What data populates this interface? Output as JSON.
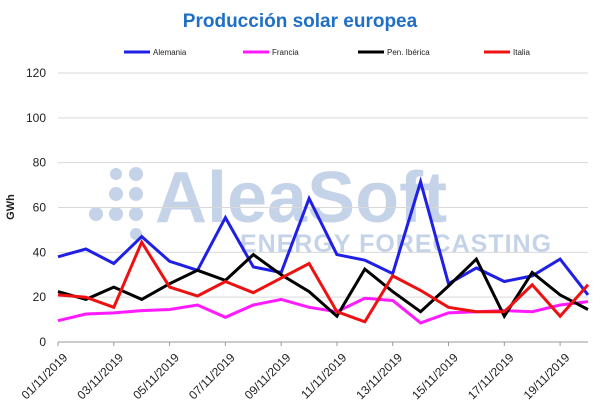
{
  "watermark": {
    "main": "AleaSoft",
    "sub": "ENERGY FORECASTING"
  },
  "chart_data": {
    "type": "line",
    "title": "Producción solar europea",
    "title_color": "#1f6fc5",
    "ylabel": "GWh",
    "xlabel": "",
    "ylim": [
      0,
      120
    ],
    "yticks": [
      0,
      20,
      40,
      60,
      80,
      100,
      120
    ],
    "grid": "horizontal",
    "legend_position": "top",
    "x": [
      "01/11/2019",
      "02/11/2019",
      "03/11/2019",
      "04/11/2019",
      "05/11/2019",
      "06/11/2019",
      "07/11/2019",
      "08/11/2019",
      "09/11/2019",
      "10/11/2019",
      "11/11/2019",
      "12/11/2019",
      "13/11/2019",
      "14/11/2019",
      "15/11/2019",
      "16/11/2019",
      "17/11/2019",
      "18/11/2019",
      "19/11/2019",
      "20/11/2019"
    ],
    "x_tick_labels": [
      "01/11/2019",
      "03/11/2019",
      "05/11/2019",
      "07/11/2019",
      "09/11/2019",
      "11/11/2019",
      "13/11/2019",
      "15/11/2019",
      "17/11/2019",
      "19/11/2019"
    ],
    "series": [
      {
        "name": "Alemania",
        "color": "#1f1fe6",
        "values": [
          38,
          41.5,
          35,
          47,
          36,
          32,
          55.5,
          33.5,
          31,
          64,
          39,
          36.5,
          30.5,
          71.5,
          26,
          33,
          27,
          29.5,
          37,
          21
        ]
      },
      {
        "name": "Francia",
        "color": "#ff1aff",
        "values": [
          9.5,
          12.5,
          13,
          14,
          14.5,
          16.5,
          11,
          16.5,
          19,
          15.5,
          13.5,
          19.5,
          18.5,
          8.5,
          13,
          13.5,
          14,
          13.5,
          16.5,
          18
        ]
      },
      {
        "name": "Pen. Ibérica",
        "color": "#000000",
        "values": [
          22.5,
          19,
          24.5,
          19,
          26,
          32,
          27.5,
          39,
          30,
          22.5,
          11.5,
          32.5,
          22.5,
          13.5,
          25,
          37,
          11.5,
          31,
          21,
          14.5
        ]
      },
      {
        "name": "Italia",
        "color": "#ee1111",
        "values": [
          21,
          20,
          15.5,
          44.5,
          24.5,
          20.5,
          27,
          22,
          28.5,
          35,
          13.5,
          9,
          29.5,
          23,
          15.5,
          13.5,
          13.5,
          25.5,
          11.5,
          25.5
        ]
      }
    ]
  }
}
